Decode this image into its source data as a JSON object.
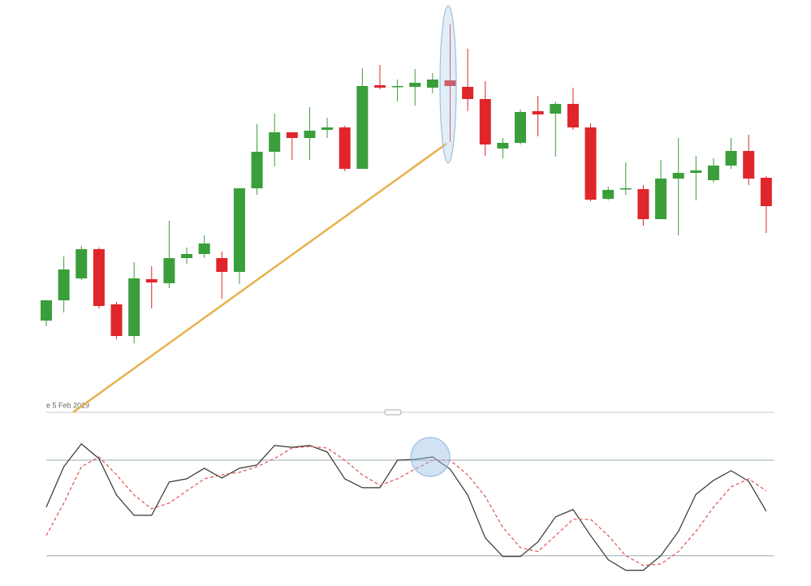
{
  "chart_data": [
    {
      "type": "candlestick",
      "annotation": "e 5 Feb 2019",
      "up_color": "#3a9e3a",
      "down_color": "#e0262b",
      "ylim": [
        0,
        50
      ],
      "open": [
        10.5,
        13,
        15.7,
        19.3,
        12.5,
        8.6,
        15.6,
        15.1,
        18.2,
        18.7,
        18.2,
        16.5,
        26.8,
        31.3,
        33.7,
        33,
        34,
        34.3,
        29.2,
        39.5,
        39.3,
        39.3,
        39.2,
        40.1,
        39.3,
        37.8,
        31.7,
        32.4,
        36.3,
        36,
        37.2,
        34.3,
        25.5,
        26.7,
        26.7,
        23,
        28,
        28.7,
        27.8,
        29.6,
        31.4,
        28.1
      ],
      "high": [
        13,
        18.4,
        19.7,
        19.5,
        12.8,
        17.7,
        17.2,
        22.8,
        19.5,
        21,
        19,
        26.8,
        34.7,
        36,
        33.7,
        36.8,
        35.5,
        34.5,
        41.6,
        42,
        40.2,
        41.5,
        41,
        47,
        44,
        40,
        33,
        36.5,
        38.2,
        37.5,
        39.2,
        34.8,
        27,
        30,
        27.2,
        30.3,
        33,
        30.8,
        30.5,
        33,
        33.4,
        28.3
      ],
      "low": [
        9.8,
        11.5,
        15.5,
        12,
        8.2,
        7.7,
        12,
        14.5,
        17.5,
        18.2,
        13.2,
        15,
        26,
        29.5,
        30.3,
        30.3,
        33,
        28.9,
        29.2,
        39,
        37.5,
        37,
        38.5,
        32.5,
        36.3,
        30.8,
        30.5,
        32.2,
        33.2,
        30.7,
        34,
        25.2,
        25.3,
        26,
        22.2,
        23,
        21,
        25.3,
        27.5,
        29.2,
        27.2,
        21.3
      ],
      "close": [
        13,
        16.8,
        19.3,
        12.3,
        8.6,
        15.7,
        15.2,
        18.2,
        18.7,
        20,
        16.5,
        26.8,
        31.3,
        33.7,
        33,
        33.9,
        34.3,
        29.2,
        39.4,
        39.2,
        39.4,
        39.8,
        40.2,
        39.4,
        37.8,
        32.2,
        32.4,
        36.2,
        35.9,
        37.2,
        34.3,
        25.4,
        26.6,
        26.8,
        23,
        28,
        28.7,
        29,
        29.6,
        31.4,
        28,
        24.6
      ]
    },
    {
      "type": "line",
      "ylim": [
        0,
        100
      ],
      "levels": [
        80,
        20
      ],
      "series": [
        {
          "color": "#333333",
          "dash": false,
          "values": [
            50.5,
            75.9,
            90.2,
            81,
            58.1,
            45.4,
            45.4,
            66.3,
            68.3,
            74.9,
            68.8,
            74.9,
            77,
            89.2,
            88.1,
            89.2,
            85.1,
            68.3,
            62.7,
            62.7,
            80,
            80.5,
            82,
            74.4,
            58.1,
            31.2,
            19.5,
            19.5,
            28.7,
            44.4,
            49,
            32.7,
            17.5,
            10.9,
            10.9,
            20,
            35.3,
            58.6,
            67.3,
            73.4,
            66.8,
            48
          ]
        },
        {
          "color": "#e05050",
          "dash": true,
          "values": [
            32.7,
            53.1,
            75.9,
            82,
            70.8,
            58.1,
            49.5,
            53.1,
            60.7,
            68.3,
            70.8,
            72.4,
            75.9,
            81,
            87.6,
            88.6,
            87.6,
            80,
            70.8,
            64.2,
            68.3,
            74.4,
            80,
            80,
            70.8,
            57.1,
            37.8,
            25.1,
            22.6,
            32.7,
            42.9,
            42.9,
            32.7,
            20,
            13.9,
            14.8,
            22.6,
            35.3,
            50.5,
            63.2,
            68.3,
            60.7
          ]
        }
      ]
    }
  ]
}
